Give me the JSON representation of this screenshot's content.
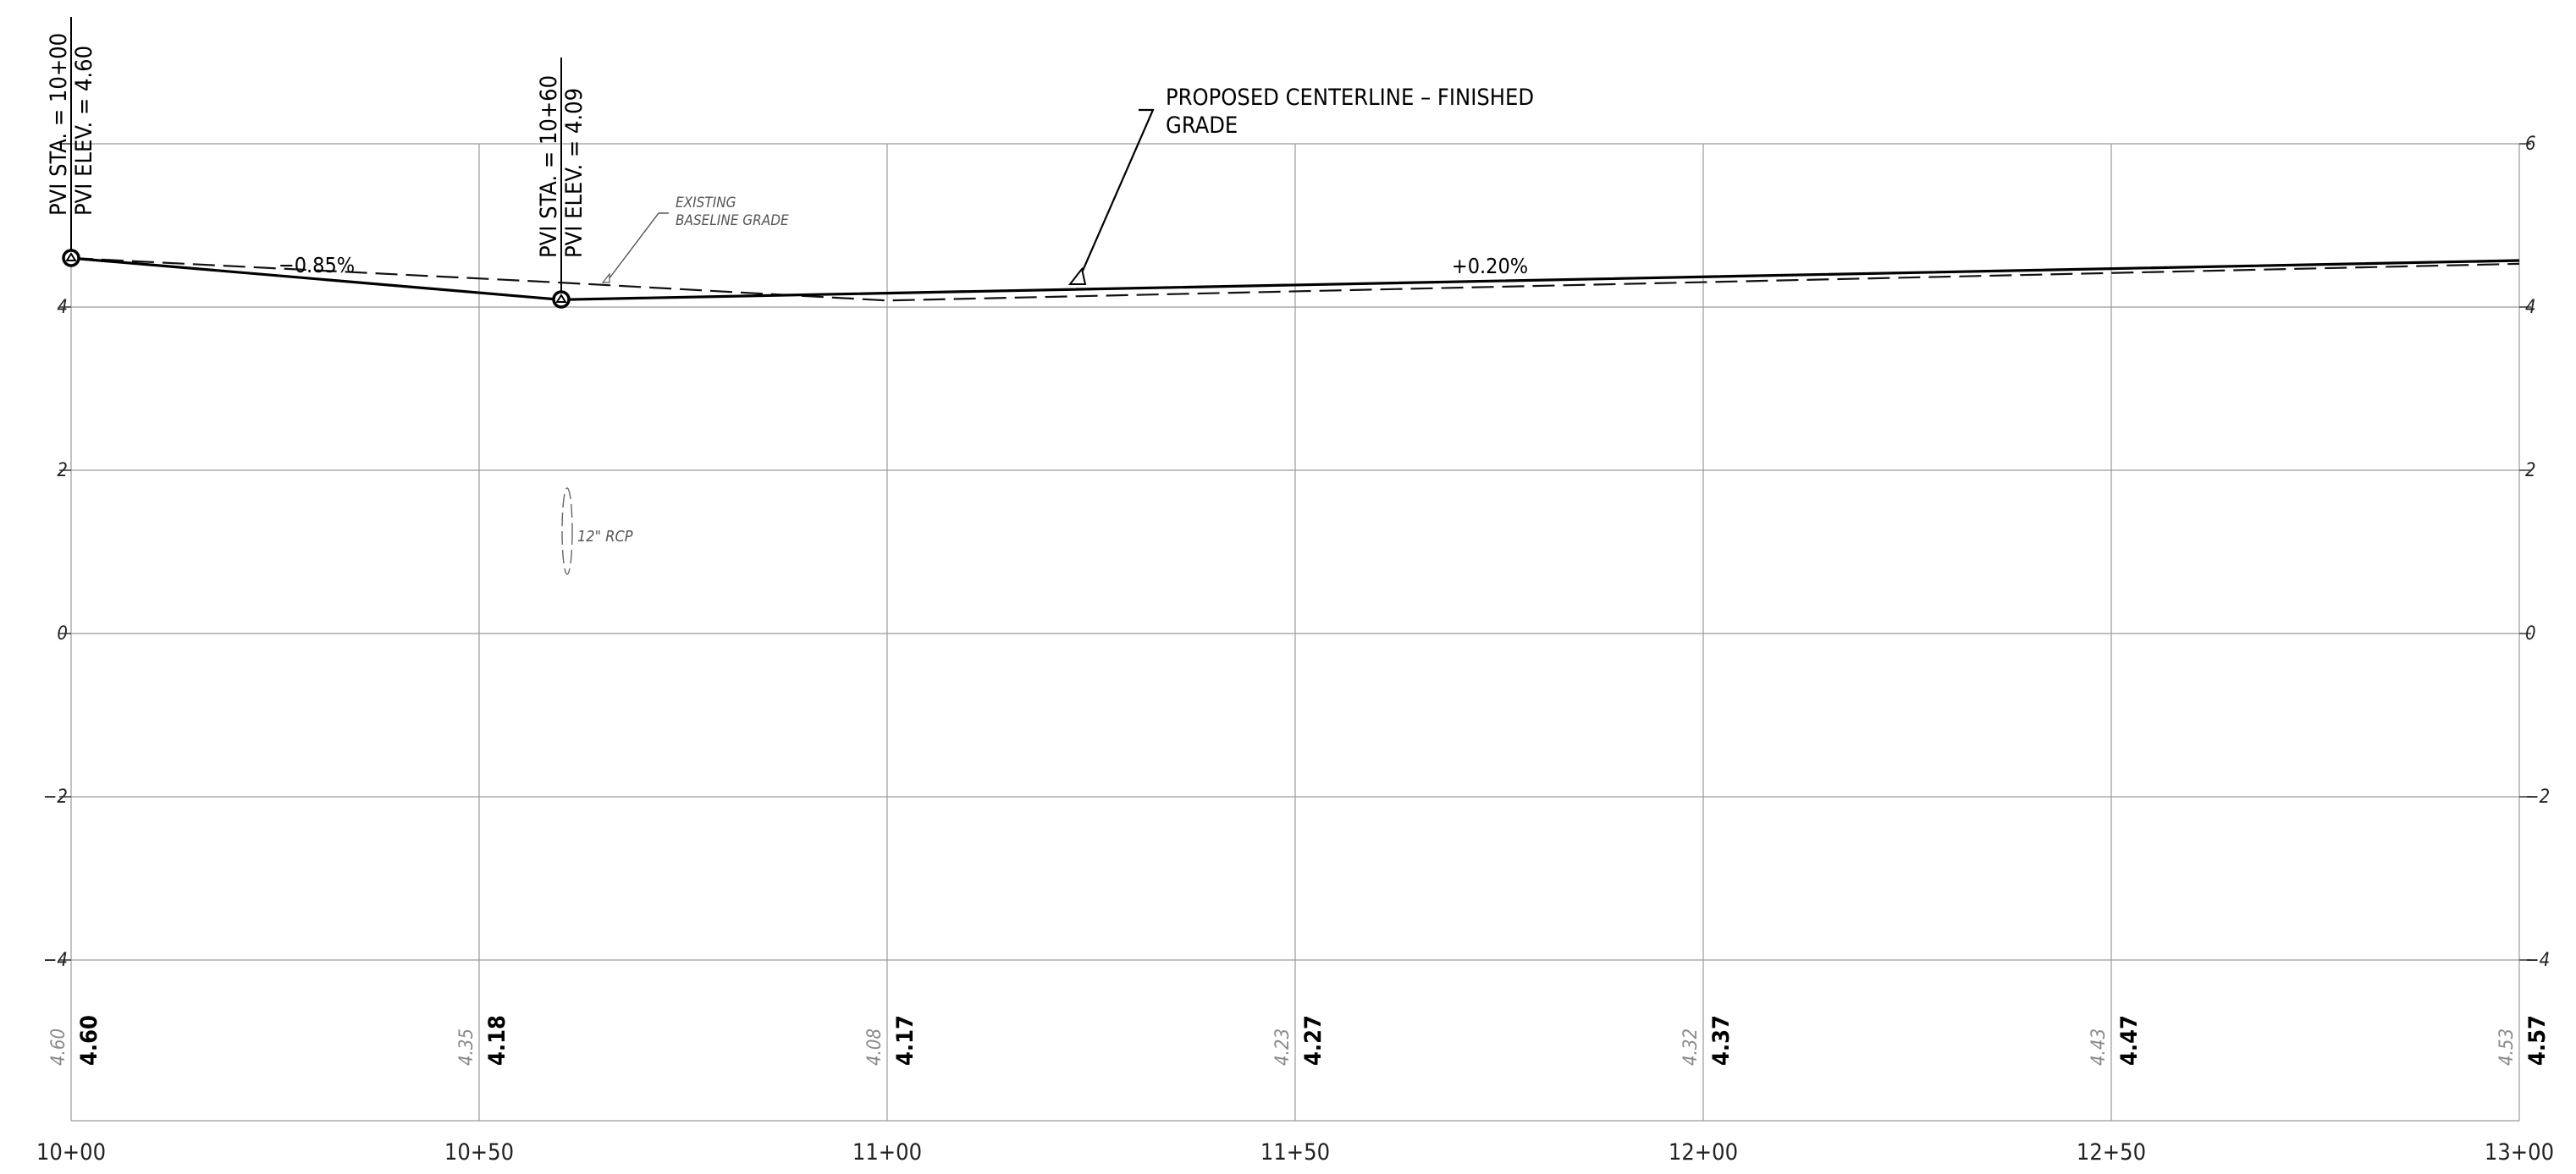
{
  "profile": {
    "stations": [
      "10+00",
      "10+50",
      "11+00",
      "11+50",
      "12+00",
      "12+50",
      "13+00"
    ],
    "elevation_ticks": [
      "6",
      "4",
      "2",
      "0",
      "−2",
      "−4"
    ],
    "existing_elevations": [
      "4.60",
      "4.35",
      "4.08",
      "4.23",
      "4.32",
      "4.43",
      "4.53"
    ],
    "proposed_elevations": [
      "4.60",
      "4.18",
      "4.17",
      "4.27",
      "4.37",
      "4.47",
      "4.57"
    ],
    "pvi_1": {
      "sta": "PVI STA. = 10+00",
      "elev": "PVI ELEV. = 4.60"
    },
    "pvi_2": {
      "sta": "PVI STA. = 10+60",
      "elev": "PVI ELEV. = 4.09"
    },
    "grade_1": "−0.85%",
    "grade_2": "+0.20%",
    "proposed_label": [
      "PROPOSED CENTERLINE – FINISHED",
      "GRADE"
    ],
    "existing_label": [
      "EXISTING",
      "BASELINE GRADE"
    ],
    "pipe_label": "12\" RCP"
  },
  "profile_data": {
    "x_range_ft": [
      1000,
      1300
    ],
    "y_range": [
      -6,
      6
    ],
    "proposed": {
      "stations_ft": [
        1000,
        1060,
        1300
      ],
      "elevations": [
        4.6,
        4.09,
        4.57
      ]
    },
    "existing": {
      "stations_ft": [
        1000,
        1060,
        1100,
        1300
      ],
      "elevations": [
        4.6,
        4.3,
        4.08,
        4.53
      ]
    },
    "pipe_station_ft": 1060,
    "pipe_elevation_range": [
      0.7,
      1.8
    ]
  }
}
